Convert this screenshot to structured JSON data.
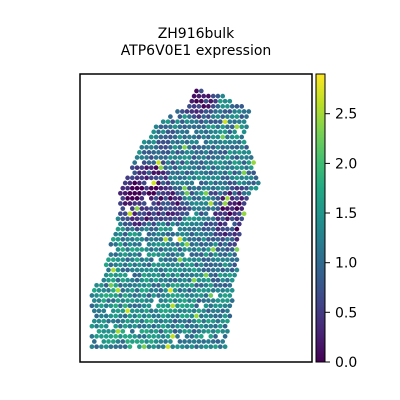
{
  "chart_data": {
    "type": "scatter",
    "title": "ZH916bulk",
    "subtitle": "ATP6V0E1 expression",
    "xlabel": "",
    "ylabel": "",
    "grid": false,
    "colormap": "viridis",
    "colorbar": {
      "vmin": 0.0,
      "vmax": 2.9,
      "ticks": [
        0.0,
        0.5,
        1.0,
        1.5,
        2.0,
        2.5
      ],
      "tick_labels": [
        "0.0",
        "0.5",
        "1.0",
        "1.5",
        "2.0",
        "2.5"
      ]
    },
    "x_range": [
      0,
      1
    ],
    "y_range": [
      0,
      1
    ],
    "tissue_outline": [
      [
        0.05,
        0.04
      ],
      [
        0.63,
        0.05
      ],
      [
        0.66,
        0.2
      ],
      [
        0.68,
        0.34
      ],
      [
        0.69,
        0.48
      ],
      [
        0.73,
        0.56
      ],
      [
        0.77,
        0.62
      ],
      [
        0.75,
        0.7
      ],
      [
        0.71,
        0.78
      ],
      [
        0.73,
        0.87
      ],
      [
        0.64,
        0.92
      ],
      [
        0.5,
        0.95
      ],
      [
        0.45,
        0.89
      ],
      [
        0.33,
        0.82
      ],
      [
        0.25,
        0.74
      ],
      [
        0.2,
        0.65
      ],
      [
        0.17,
        0.58
      ],
      [
        0.16,
        0.48
      ],
      [
        0.13,
        0.42
      ],
      [
        0.12,
        0.36
      ],
      [
        0.1,
        0.3
      ],
      [
        0.04,
        0.24
      ],
      [
        0.05,
        0.1
      ]
    ],
    "expression_patches": [
      {
        "x": 0.32,
        "y": 0.3,
        "r": 0.22,
        "value": 1.35
      },
      {
        "x": 0.5,
        "y": 0.2,
        "r": 0.18,
        "value": 1.3
      },
      {
        "x": 0.22,
        "y": 0.15,
        "r": 0.14,
        "value": 1.45
      },
      {
        "x": 0.55,
        "y": 0.45,
        "r": 0.16,
        "value": 1.15
      },
      {
        "x": 0.45,
        "y": 0.72,
        "r": 0.14,
        "value": 1.1
      },
      {
        "x": 0.62,
        "y": 0.78,
        "r": 0.12,
        "value": 1.2
      },
      {
        "x": 0.26,
        "y": 0.57,
        "r": 0.09,
        "value": 0.2
      },
      {
        "x": 0.64,
        "y": 0.5,
        "r": 0.08,
        "value": 0.25
      },
      {
        "x": 0.4,
        "y": 0.54,
        "r": 0.05,
        "value": 0.3
      },
      {
        "x": 0.34,
        "y": 0.66,
        "r": 0.05,
        "value": 0.4
      },
      {
        "x": 0.52,
        "y": 0.9,
        "r": 0.05,
        "value": 0.35
      }
    ]
  }
}
